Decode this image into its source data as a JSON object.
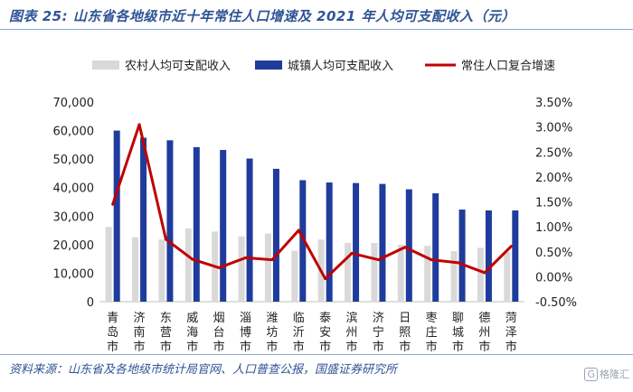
{
  "header": {
    "title": "图表 25:  山东省各地级市近十年常住人口增速及 2021 年人均可支配收入（元）"
  },
  "footer": {
    "source": "资料来源：山东省及各地级市统计局官网、人口普查公报，国盛证券研究所",
    "watermark_icon": "G",
    "watermark_text": "格隆汇"
  },
  "colors": {
    "rural": "#d9d9d9",
    "urban": "#1f3c9c",
    "growth": "#c00000",
    "title": "#2f5496"
  },
  "chart_data": {
    "type": "bar",
    "categories": [
      "青岛市",
      "济南市",
      "东营市",
      "威海市",
      "烟台市",
      "淄博市",
      "潍坊市",
      "临沂市",
      "泰安市",
      "滨州市",
      "济宁市",
      "日照市",
      "枣庄市",
      "聊城市",
      "德州市",
      "菏泽市"
    ],
    "series": [
      {
        "name": "农村人均可支配收入",
        "type": "bar",
        "axis": "left",
        "values": [
          26200,
          22600,
          21800,
          25700,
          24600,
          22900,
          23900,
          17900,
          21800,
          20600,
          20600,
          20000,
          19600,
          17700,
          18900,
          17500
        ]
      },
      {
        "name": "城镇人均可支配收入",
        "type": "bar",
        "axis": "left",
        "values": [
          60000,
          57500,
          56600,
          54200,
          53200,
          50200,
          46600,
          42600,
          41800,
          41600,
          41300,
          39400,
          38000,
          32300,
          32000,
          32000
        ]
      },
      {
        "name": "常住人口复合增速",
        "type": "line",
        "axis": "right",
        "unit": "%",
        "values": [
          1.45,
          3.05,
          0.75,
          0.35,
          0.18,
          0.38,
          0.34,
          0.93,
          -0.04,
          0.47,
          0.34,
          0.59,
          0.34,
          0.28,
          0.08,
          0.61
        ]
      }
    ],
    "y_left": {
      "min": 0,
      "max": 70000,
      "step": 10000,
      "ticks": [
        "0",
        "10,000",
        "20,000",
        "30,000",
        "40,000",
        "50,000",
        "60,000",
        "70,000"
      ]
    },
    "y_right": {
      "min": -0.5,
      "max": 3.5,
      "step": 0.5,
      "ticks": [
        "-0.50%",
        "0.00%",
        "0.50%",
        "1.00%",
        "1.50%",
        "2.00%",
        "2.50%",
        "3.00%",
        "3.50%"
      ]
    },
    "legend_position": "top",
    "grid": false
  }
}
